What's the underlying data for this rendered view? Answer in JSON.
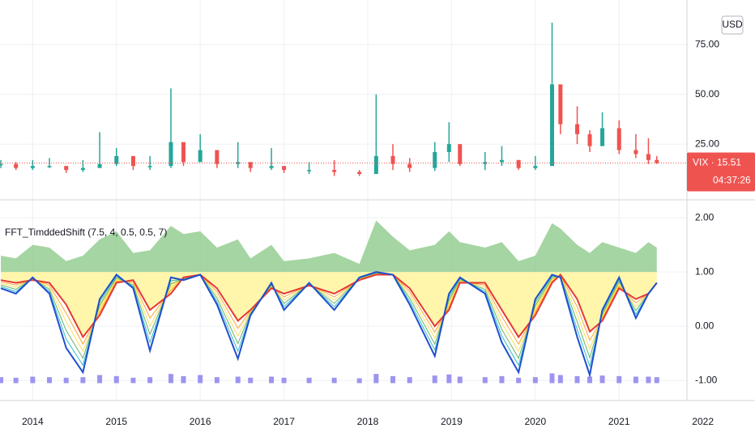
{
  "chart_data": [
    {
      "type": "candlestick",
      "currency": "USD",
      "price_label": "VIX · 15.51",
      "last_value": 15.51,
      "countdown": "04:37:26",
      "up_color": "#26a69a",
      "down_color": "#ef5350",
      "x": [
        2013.62,
        2013.8,
        2014.0,
        2014.2,
        2014.4,
        2014.6,
        2014.8,
        2015.0,
        2015.2,
        2015.4,
        2015.65,
        2015.8,
        2016.0,
        2016.2,
        2016.45,
        2016.6,
        2016.85,
        2017.0,
        2017.3,
        2017.6,
        2017.9,
        2018.1,
        2018.3,
        2018.5,
        2018.8,
        2018.97,
        2019.1,
        2019.4,
        2019.6,
        2019.8,
        2020.0,
        2020.2,
        2020.3,
        2020.5,
        2020.65,
        2020.8,
        2021.0,
        2021.2,
        2021.35,
        2021.45
      ],
      "values": [
        15,
        13,
        14,
        14,
        12,
        13,
        15,
        19,
        14,
        14,
        26,
        16,
        22,
        15,
        16,
        13,
        14,
        12,
        12,
        11,
        10,
        19,
        15,
        13,
        21,
        25,
        15,
        16,
        17,
        13,
        14,
        55,
        35,
        30,
        24,
        33,
        22,
        20,
        17,
        15.5
      ],
      "high": [
        17,
        16,
        17,
        18,
        13,
        17,
        31,
        23,
        17,
        19,
        53,
        24,
        30,
        20,
        26,
        15,
        23,
        14,
        16,
        17,
        12,
        50,
        25,
        18,
        26,
        36,
        21,
        21,
        24,
        17,
        19,
        86,
        47,
        44,
        32,
        41,
        37,
        30,
        28,
        19
      ],
      "low": [
        13,
        12,
        12,
        13,
        10.5,
        11,
        13,
        14,
        12,
        12,
        13,
        14,
        16,
        13,
        13,
        11,
        12,
        10.5,
        10,
        9,
        9,
        10,
        12,
        11,
        11.5,
        16,
        14,
        12,
        14,
        12,
        12,
        14,
        30,
        25,
        21,
        24,
        20,
        18,
        15,
        15
      ],
      "ylim": [
        -3,
        97.4
      ],
      "yticks": [
        {
          "value": 25,
          "label": "25.00"
        },
        {
          "value": 50,
          "label": "50.00"
        },
        {
          "value": 75,
          "label": "75.00"
        }
      ]
    },
    {
      "type": "line",
      "title": "FFT_TimddedShift (7.5, 4, 0.5, 0.5, 7)",
      "baseline": 1,
      "x": [
        2013.62,
        2013.8,
        2014.0,
        2014.2,
        2014.4,
        2014.6,
        2014.8,
        2015.0,
        2015.2,
        2015.4,
        2015.65,
        2015.8,
        2016.0,
        2016.2,
        2016.45,
        2016.6,
        2016.85,
        2017.0,
        2017.3,
        2017.6,
        2017.9,
        2018.1,
        2018.3,
        2018.5,
        2018.8,
        2018.97,
        2019.1,
        2019.4,
        2019.6,
        2019.8,
        2020.0,
        2020.2,
        2020.3,
        2020.5,
        2020.65,
        2020.8,
        2021.0,
        2021.2,
        2021.35,
        2021.45
      ],
      "series": [
        {
          "style": "area",
          "color": "#8fcb8b",
          "values": [
            1.3,
            1.25,
            1.5,
            1.45,
            1.2,
            1.3,
            1.6,
            1.75,
            1.35,
            1.4,
            1.85,
            1.7,
            1.75,
            1.45,
            1.6,
            1.25,
            1.5,
            1.2,
            1.25,
            1.35,
            1.15,
            1.95,
            1.65,
            1.4,
            1.5,
            1.75,
            1.55,
            1.45,
            1.55,
            1.2,
            1.3,
            1.9,
            1.8,
            1.5,
            1.35,
            1.55,
            1.45,
            1.35,
            1.55,
            1.45
          ]
        },
        {
          "style": "line",
          "color": "#e53935",
          "values": [
            0.85,
            0.8,
            0.85,
            0.8,
            0.4,
            -0.2,
            0.2,
            0.8,
            0.85,
            0.3,
            0.6,
            0.9,
            0.95,
            0.7,
            0.1,
            0.3,
            0.7,
            0.6,
            0.75,
            0.6,
            0.85,
            0.95,
            0.95,
            0.7,
            0.0,
            0.3,
            0.8,
            0.8,
            0.3,
            -0.2,
            0.2,
            0.8,
            0.95,
            0.5,
            -0.1,
            0.1,
            0.7,
            0.5,
            0.6,
            0.8
          ]
        },
        {
          "style": "line",
          "color": "#1e4fcf",
          "values": [
            0.7,
            0.6,
            0.9,
            0.6,
            -0.4,
            -0.85,
            0.5,
            0.95,
            0.7,
            -0.45,
            0.9,
            0.85,
            0.95,
            0.4,
            -0.6,
            0.2,
            0.8,
            0.3,
            0.8,
            0.3,
            0.9,
            1.0,
            0.95,
            0.4,
            -0.55,
            0.6,
            0.9,
            0.6,
            -0.3,
            -0.85,
            0.5,
            0.95,
            0.9,
            -0.2,
            -0.9,
            0.3,
            0.9,
            0.15,
            0.6,
            0.8
          ]
        },
        {
          "style": "column",
          "color": "#9d94f0",
          "values": [
            -0.94,
            -0.95,
            -0.93,
            -0.94,
            -0.95,
            -0.94,
            -0.9,
            -0.92,
            -0.95,
            -0.94,
            -0.88,
            -0.92,
            -0.9,
            -0.94,
            -0.93,
            -0.95,
            -0.93,
            -0.95,
            -0.95,
            -0.95,
            -0.96,
            -0.88,
            -0.92,
            -0.94,
            -0.91,
            -0.89,
            -0.93,
            -0.94,
            -0.92,
            -0.95,
            -0.94,
            -0.87,
            -0.9,
            -0.92,
            -0.93,
            -0.91,
            -0.92,
            -0.93,
            -0.93,
            -0.94
          ]
        }
      ],
      "fill_color": "#fff59d",
      "xlim": [
        2013.61,
        2021.81
      ],
      "ylim": [
        -1.37,
        2.33
      ],
      "yticks": [
        {
          "value": 2,
          "label": "2.00"
        },
        {
          "value": 1,
          "label": "1.00"
        },
        {
          "value": 0,
          "label": "0.00"
        },
        {
          "value": -1,
          "label": "-1.00"
        }
      ],
      "xticks": [
        2014,
        2015,
        2016,
        2017,
        2018,
        2019,
        2020,
        2021,
        2022
      ]
    }
  ]
}
